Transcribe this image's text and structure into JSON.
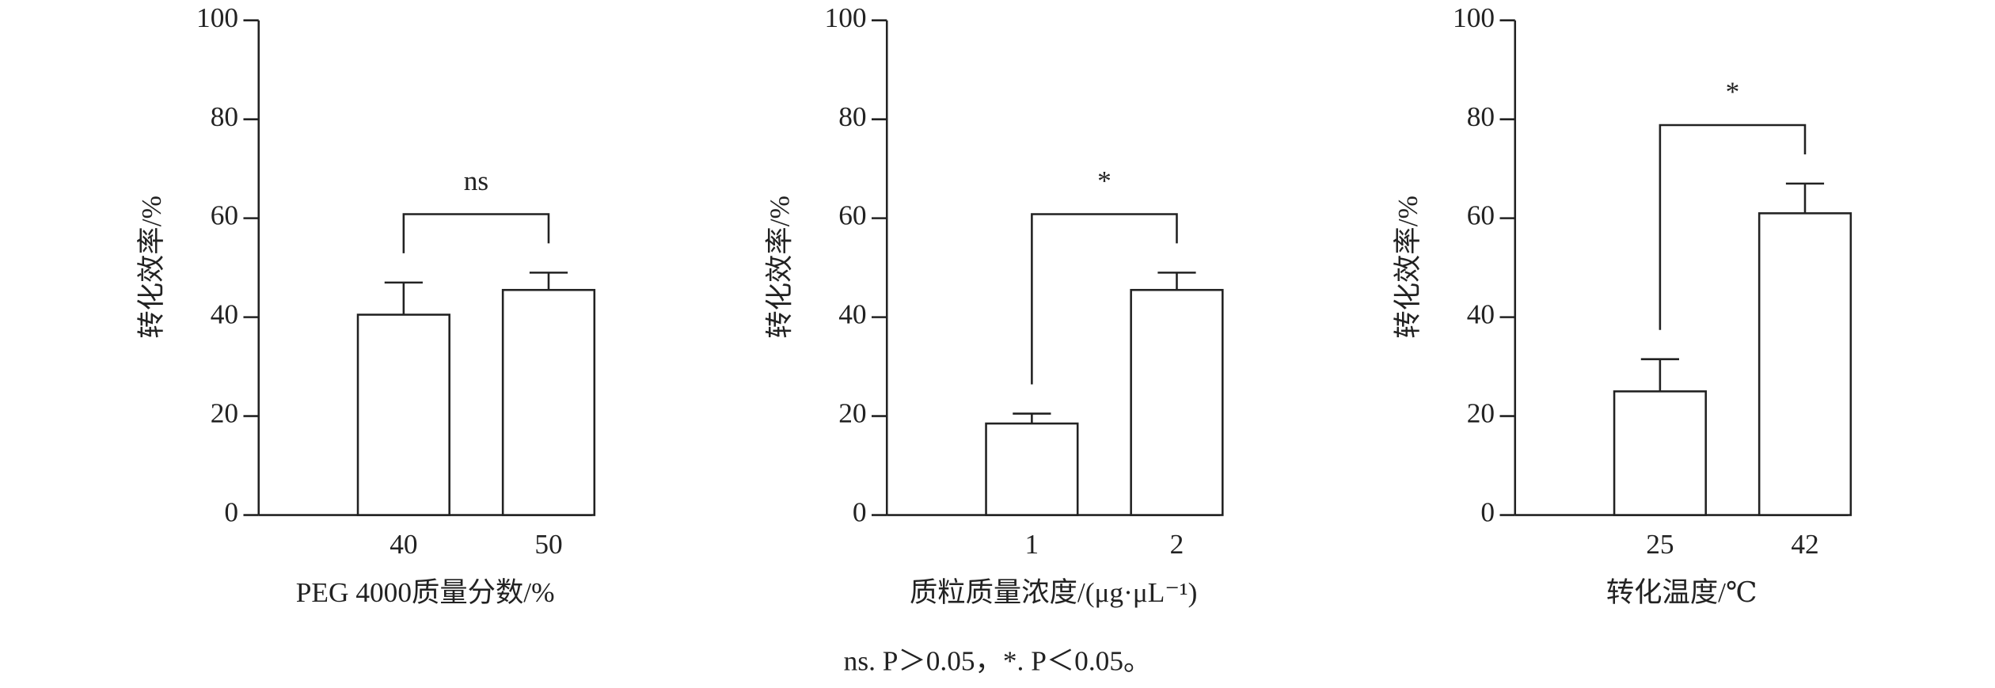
{
  "chart_data": [
    {
      "type": "bar",
      "categories": [
        "40",
        "50"
      ],
      "values": [
        40.5,
        45.5
      ],
      "errors": [
        6.5,
        3.5
      ],
      "color": "#ffffff",
      "ylim": [
        0,
        100
      ],
      "yticks": [
        0,
        20,
        40,
        60,
        80,
        100
      ],
      "annotation": "ns",
      "x_label": "PEG 4000质量分数/%",
      "y_label": "转化效率/%"
    },
    {
      "type": "bar",
      "categories": [
        "1",
        "2"
      ],
      "values": [
        18.5,
        45.5
      ],
      "errors": [
        2,
        3.5
      ],
      "color": "#ffffff",
      "ylim": [
        0,
        100
      ],
      "yticks": [
        0,
        20,
        40,
        60,
        80,
        100
      ],
      "annotation": "*",
      "x_label": "质粒质量浓度/(μg·μL⁻¹)",
      "y_label": "转化效率/%"
    },
    {
      "type": "bar",
      "categories": [
        "25",
        "42"
      ],
      "values": [
        25,
        61
      ],
      "errors": [
        6.5,
        6
      ],
      "color": "#ffffff",
      "ylim": [
        0,
        100
      ],
      "yticks": [
        0,
        20,
        40,
        60,
        80,
        100
      ],
      "annotation": "*",
      "x_label": "转化温度/℃",
      "y_label": "转化效率/%"
    }
  ],
  "footnote": "ns. P＞0.05，*. P＜0.05。"
}
